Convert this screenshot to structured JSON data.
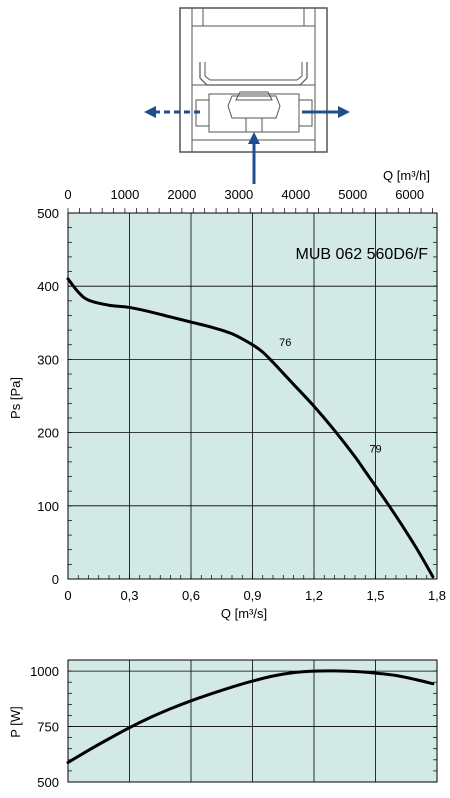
{
  "colors": {
    "plot_bg": "#d2e9e6",
    "grid": "#000000",
    "curve": "#000000",
    "flow_arrow": "#1f4e8c",
    "housing_stroke": "#555555"
  },
  "icons": [
    "fan-housing-diagram-icon",
    "outlet-arrow-left-icon",
    "outlet-arrow-right-icon",
    "inlet-arrow-up-icon"
  ],
  "chart_data": [
    {
      "type": "line",
      "title": "MUB 062 560D6/F",
      "xlabel": "Q [m³/s]",
      "ylabel": "Ps [Pa]",
      "x2label": "Q [m³/h]",
      "xlim": [
        0,
        1.8
      ],
      "ylim": [
        0,
        500
      ],
      "x2lim": [
        0,
        6480
      ],
      "xticks": [
        "0",
        "0,3",
        "0,6",
        "0,9",
        "1,2",
        "1,5",
        "1,8"
      ],
      "yticks": [
        "0",
        "100",
        "200",
        "300",
        "400",
        "500"
      ],
      "x2ticks": [
        "0",
        "1000",
        "2000",
        "3000",
        "4000",
        "5000",
        "6000"
      ],
      "grid": true,
      "series": [
        {
          "x": [
            0,
            0.05,
            0.1,
            0.2,
            0.3,
            0.4,
            0.5,
            0.6,
            0.7,
            0.8,
            0.9,
            0.95,
            1.0,
            1.05,
            1.1,
            1.2,
            1.3,
            1.4,
            1.45,
            1.5,
            1.6,
            1.7,
            1.78
          ],
          "y": [
            410,
            392,
            381,
            374,
            371,
            365,
            358,
            351,
            344,
            335,
            320,
            310,
            296,
            281,
            266,
            236,
            203,
            167,
            147,
            127,
            86,
            42,
            3
          ]
        }
      ],
      "annotations": [
        {
          "text": "76",
          "x": 1.03,
          "y": 318
        },
        {
          "text": "79",
          "x": 1.47,
          "y": 173
        }
      ]
    },
    {
      "type": "line",
      "xlabel": "",
      "ylabel": "P [W]",
      "xlim": [
        0,
        1.8
      ],
      "ylim": [
        500,
        1050
      ],
      "yticks": [
        "500",
        "750",
        "1000"
      ],
      "ytick_values": [
        500,
        750,
        1000
      ],
      "grid": true,
      "series": [
        {
          "x": [
            0,
            0.1,
            0.2,
            0.3,
            0.4,
            0.5,
            0.6,
            0.7,
            0.8,
            0.9,
            1.0,
            1.1,
            1.2,
            1.3,
            1.4,
            1.5,
            1.6,
            1.7,
            1.78
          ],
          "y": [
            588,
            643,
            695,
            745,
            790,
            830,
            866,
            898,
            928,
            955,
            978,
            993,
            1000,
            1001,
            998,
            991,
            980,
            961,
            943
          ]
        }
      ]
    }
  ]
}
